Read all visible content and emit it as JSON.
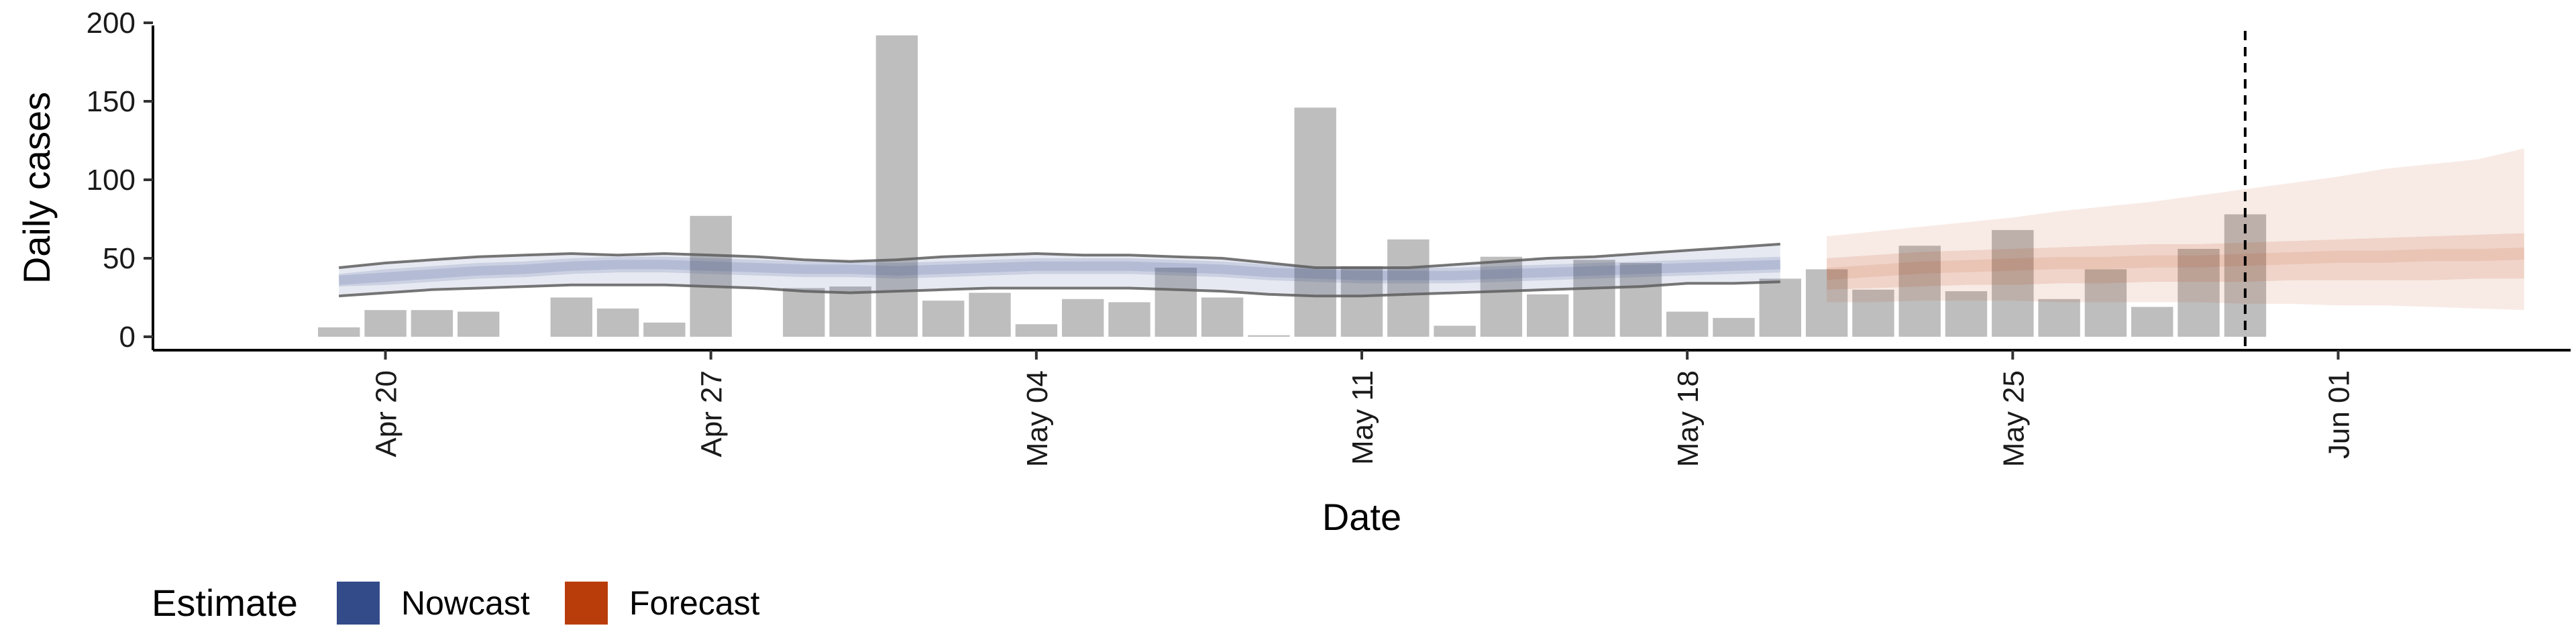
{
  "chart_data": {
    "type": "bar",
    "title": "",
    "xlabel": "Date",
    "ylabel": "Daily cases",
    "ylim": [
      0,
      200
    ],
    "yticks": [
      0,
      50,
      100,
      150,
      200
    ],
    "xlim": [
      "2020-04-15",
      "2020-06-06"
    ],
    "xticks": [
      {
        "date": "2020-04-20",
        "label": "Apr 20"
      },
      {
        "date": "2020-04-27",
        "label": "Apr 27"
      },
      {
        "date": "2020-05-04",
        "label": "May 04"
      },
      {
        "date": "2020-05-11",
        "label": "May 11"
      },
      {
        "date": "2020-05-18",
        "label": "May 18"
      },
      {
        "date": "2020-05-25",
        "label": "May 25"
      },
      {
        "date": "2020-06-01",
        "label": "Jun 01"
      }
    ],
    "reference_line_date": "2020-05-30",
    "grid": false,
    "bars": {
      "start_date": "2020-04-19",
      "values": [
        6,
        17,
        17,
        16,
        0,
        25,
        18,
        9,
        77,
        0,
        31,
        32,
        192,
        23,
        28,
        8,
        24,
        22,
        44,
        25,
        1,
        146,
        45,
        62,
        7,
        51,
        27,
        49,
        47,
        16,
        12,
        37,
        43,
        30,
        58,
        29,
        68,
        24,
        43,
        19,
        56,
        78
      ],
      "color": "#bebebe"
    },
    "nowcast": {
      "start_date": "2020-04-19",
      "median": [
        36,
        38,
        40,
        42,
        43,
        45,
        46,
        46,
        45,
        44,
        43,
        43,
        42,
        43,
        44,
        45,
        45,
        45,
        44,
        43,
        41,
        40,
        39,
        39,
        39,
        40,
        41,
        42,
        43,
        44,
        45,
        46
      ],
      "lower50": [
        32,
        33,
        35,
        37,
        38,
        40,
        41,
        41,
        40,
        39,
        38,
        38,
        37,
        38,
        39,
        40,
        40,
        40,
        39,
        38,
        36,
        35,
        34,
        34,
        34,
        35,
        36,
        37,
        38,
        39,
        40,
        41
      ],
      "upper50": [
        40,
        43,
        45,
        47,
        48,
        50,
        51,
        51,
        50,
        49,
        48,
        48,
        47,
        48,
        49,
        50,
        50,
        50,
        49,
        48,
        46,
        45,
        44,
        44,
        44,
        45,
        46,
        47,
        48,
        49,
        50,
        51
      ],
      "lower90": [
        26,
        28,
        30,
        31,
        32,
        33,
        33,
        33,
        32,
        31,
        29,
        28,
        29,
        30,
        31,
        31,
        31,
        31,
        30,
        29,
        27,
        26,
        26,
        27,
        28,
        29,
        30,
        31,
        32,
        34,
        34,
        35
      ],
      "upper90": [
        44,
        47,
        49,
        51,
        52,
        53,
        52,
        53,
        52,
        51,
        49,
        48,
        49,
        51,
        52,
        53,
        52,
        52,
        51,
        50,
        47,
        44,
        44,
        44,
        46,
        48,
        50,
        51,
        53,
        55,
        57,
        59
      ],
      "color": "#344b8a"
    },
    "forecast": {
      "start_date": "2020-05-21",
      "median": [
        40,
        42,
        44,
        45,
        46,
        47,
        47,
        48,
        48,
        49,
        50,
        51,
        51,
        52,
        52,
        53
      ],
      "lower50": [
        30,
        31,
        32,
        33,
        33,
        34,
        34,
        35,
        35,
        35,
        36,
        36,
        36,
        36,
        37,
        37
      ],
      "upper50": [
        50,
        52,
        54,
        55,
        56,
        57,
        58,
        59,
        59,
        60,
        61,
        62,
        63,
        64,
        65,
        66
      ],
      "lower90": [
        22,
        22,
        23,
        23,
        23,
        22,
        22,
        22,
        22,
        21,
        21,
        20,
        20,
        19,
        18,
        17
      ],
      "upper90": [
        64,
        67,
        70,
        73,
        76,
        80,
        83,
        86,
        90,
        94,
        98,
        102,
        107,
        110,
        113,
        120
      ],
      "color": "#b83d0a"
    },
    "legend": {
      "title": "Estimate",
      "position": "bottom-left",
      "entries": [
        {
          "label": "Nowcast",
          "color": "#344b8a"
        },
        {
          "label": "Forecast",
          "color": "#b83d0a"
        }
      ]
    }
  }
}
